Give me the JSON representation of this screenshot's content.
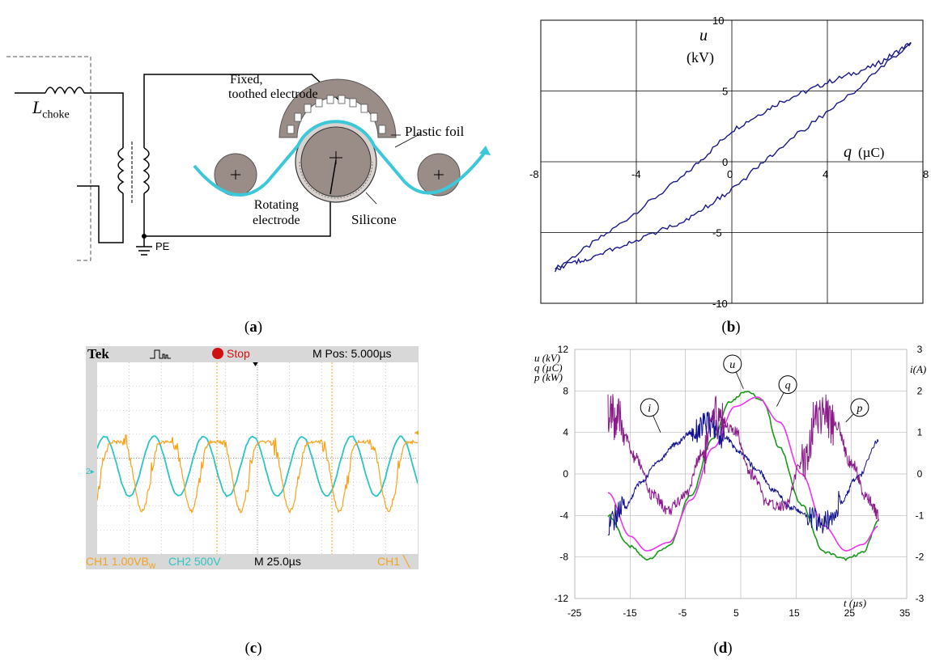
{
  "panels": {
    "a": {
      "label_open": "(",
      "label_letter": "a",
      "label_close": ")",
      "choke_symbol": "L",
      "choke_subscript": "choke",
      "electrode_top_1": "Fixed,",
      "electrode_top_2": "toothed electrode",
      "plastic_foil": "Plastic foil",
      "rotating_1": "Rotating",
      "rotating_2": "electrode",
      "silicone": "Silicone",
      "pe": "PE"
    },
    "b": {
      "label_open": "(",
      "label_letter": "b",
      "label_close": ")",
      "u_symbol": "u",
      "u_unit": "(kV)",
      "q_symbol": "q",
      "q_unit": "(µC)"
    },
    "c": {
      "label_open": "(",
      "label_letter": "c",
      "label_close": ")",
      "brand": "Tek",
      "state": "Stop",
      "mpos": "M Pos: 5.000µs",
      "ch1": "CH1  1.00VB",
      "ch1_sub": "W",
      "ch2": "CH2  500V",
      "timebase": "M 25.0µs",
      "trigger": "CH1 ╲",
      "marker_ch2": "2",
      "colors": {
        "ch1": "#f7a21b",
        "ch2": "#2ec4c4",
        "bg": "#ffffff",
        "frame": "#d8d8d8"
      }
    },
    "d": {
      "label_open": "(",
      "label_letter": "d",
      "label_close": ")",
      "left_axis_u": "u (kV)",
      "left_axis_q": "q  (µC)",
      "left_axis_p": "p (kW)",
      "right_axis": "i(A)",
      "t_axis": "t (µs)",
      "curve_labels": {
        "u": "u",
        "q": "q",
        "i": "i",
        "p": "p"
      },
      "colors": {
        "u": "#1a9a1a",
        "q": "#ee33ee",
        "i": "#101090",
        "p": "#8a1a8a"
      }
    }
  },
  "chart_data": [
    {
      "panel": "b",
      "type": "scatter",
      "xlabel": "q (µC)",
      "ylabel": "u (kV)",
      "xlim": [
        -8,
        8
      ],
      "ylim": [
        -10,
        10
      ],
      "xticks": [
        "-8",
        "-4",
        "0",
        "4",
        "8"
      ],
      "yticks": [
        "10",
        "5",
        "0",
        "-5",
        "-10"
      ],
      "grid": true,
      "color": "#1a1a8a",
      "series": [
        {
          "x": [
            -7.4,
            -5.0,
            -2.0,
            0.0,
            2.0,
            4.0,
            6.0,
            7.5
          ],
          "y": [
            -7.6,
            -4.8,
            -1.0,
            2.2,
            4.2,
            5.6,
            6.8,
            8.4
          ]
        },
        {
          "x": [
            7.5,
            5.0,
            2.0,
            0.0,
            -2.0,
            -4.0,
            -6.0,
            -7.4
          ],
          "y": [
            8.4,
            4.8,
            1.0,
            -2.0,
            -4.2,
            -5.6,
            -6.8,
            -7.6
          ]
        }
      ]
    },
    {
      "panel": "d",
      "type": "line",
      "xlabel": "t (µs)",
      "ylabel": "u (kV), q (µC), p (kW)",
      "y2label": "i(A)",
      "xlim": [
        -25,
        35
      ],
      "ylim": [
        -12,
        12
      ],
      "y2lim": [
        -3,
        3
      ],
      "xticks": [
        "-25",
        "-15",
        "-5",
        "5",
        "15",
        "25",
        "35"
      ],
      "yticks": [
        "12",
        "8",
        "4",
        "0",
        "-4",
        "-8",
        "-12"
      ],
      "y2ticks": [
        "3",
        "2",
        "1",
        "0",
        "-1",
        "-2",
        "-3"
      ],
      "grid": true,
      "series": [
        {
          "name": "u",
          "axis": "left",
          "x": [
            -19,
            -15,
            -12,
            -8,
            -4,
            0,
            3,
            6,
            9,
            12,
            16,
            20,
            24,
            27,
            30
          ],
          "y": [
            -4.0,
            -7.0,
            -8.2,
            -7.0,
            -2.0,
            3.5,
            7.0,
            8.0,
            7.0,
            2.5,
            -3.0,
            -7.5,
            -8.2,
            -7.6,
            -4.5
          ]
        },
        {
          "name": "q",
          "axis": "left",
          "x": [
            -19,
            -15,
            -12,
            -8,
            -4,
            0,
            4,
            8,
            12,
            16,
            20,
            24,
            27,
            30
          ],
          "y": [
            -1.8,
            -6.0,
            -7.4,
            -6.6,
            -2.5,
            2.5,
            6.5,
            7.4,
            5.0,
            0.0,
            -5.0,
            -7.4,
            -6.8,
            -5.0
          ]
        },
        {
          "name": "i",
          "axis": "right",
          "x": [
            -19,
            -16,
            -13,
            -10,
            -7,
            -4,
            -1,
            2,
            5,
            8,
            11,
            14,
            17,
            20,
            23,
            26,
            30
          ],
          "y": [
            -1.2,
            -0.8,
            -0.2,
            0.3,
            0.7,
            1.0,
            1.2,
            0.9,
            0.5,
            0.1,
            -0.4,
            -0.8,
            -1.0,
            -1.2,
            -0.7,
            -0.1,
            0.8
          ]
        },
        {
          "name": "p",
          "axis": "left",
          "x": [
            -19,
            -17,
            -14,
            -11,
            -8,
            -5,
            -2,
            1,
            4,
            7,
            10,
            13,
            16,
            19,
            22,
            25,
            28,
            30
          ],
          "y": [
            6.0,
            5.0,
            1.5,
            -2.0,
            -3.5,
            -2.0,
            2.0,
            5.5,
            4.0,
            0.0,
            -3.0,
            -3.0,
            1.0,
            6.0,
            5.0,
            1.0,
            -2.5,
            -4.0
          ]
        }
      ]
    },
    {
      "panel": "c",
      "type": "line",
      "series": [
        {
          "name": "CH1",
          "cycles": 6.5,
          "amplitude_div": 1.6,
          "offset_div": 0.2
        },
        {
          "name": "CH2",
          "cycles": 6.5,
          "amplitude_div": 1.0,
          "offset_div": 0.0
        }
      ]
    }
  ]
}
